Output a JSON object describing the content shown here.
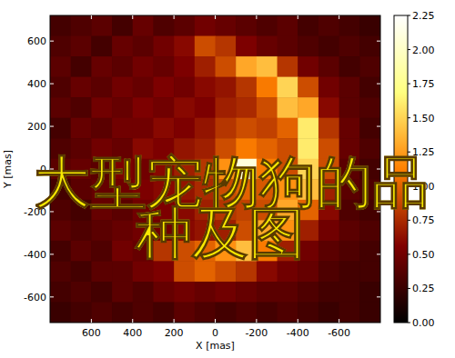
{
  "chart_data": {
    "type": "heatmap",
    "x_label": "X [mas]",
    "y_label": "Y [mas]",
    "annotations": [
      "大型宠物狗的品",
      "种及图"
    ],
    "xlim": [
      800,
      -800
    ],
    "ylim": [
      -720,
      720
    ],
    "xticks": [
      600,
      400,
      200,
      0,
      -200,
      -400,
      -600
    ],
    "yticks": [
      -600,
      -400,
      -200,
      0,
      200,
      400,
      600
    ],
    "x": [
      750,
      650,
      550,
      450,
      350,
      250,
      150,
      50,
      -50,
      -150,
      -250,
      -350,
      -450,
      -550,
      -650,
      -750
    ],
    "y": [
      672,
      576,
      480,
      384,
      288,
      192,
      96,
      0,
      -96,
      -192,
      -288,
      -384,
      -480,
      -576,
      -672
    ],
    "values": [
      [
        0.3,
        0.35,
        0.4,
        0.3,
        0.45,
        0.35,
        0.4,
        0.5,
        0.45,
        0.4,
        0.35,
        0.4,
        0.3,
        0.35,
        0.3,
        0.25
      ],
      [
        0.35,
        0.4,
        0.3,
        0.45,
        0.4,
        0.5,
        0.6,
        0.9,
        0.8,
        0.55,
        0.45,
        0.4,
        0.35,
        0.3,
        0.35,
        0.3
      ],
      [
        0.4,
        0.3,
        0.45,
        0.4,
        0.5,
        0.45,
        0.55,
        0.7,
        0.9,
        1.3,
        1.4,
        0.8,
        0.5,
        0.4,
        0.3,
        0.35
      ],
      [
        0.35,
        0.45,
        0.4,
        0.5,
        0.45,
        0.55,
        0.5,
        0.6,
        0.65,
        0.8,
        1.1,
        1.5,
        0.9,
        0.5,
        0.4,
        0.3
      ],
      [
        0.4,
        0.35,
        0.5,
        0.45,
        0.55,
        0.5,
        0.6,
        0.55,
        0.7,
        0.75,
        0.9,
        1.4,
        1.3,
        0.6,
        0.4,
        0.35
      ],
      [
        0.3,
        0.45,
        0.4,
        0.5,
        0.5,
        0.6,
        0.55,
        0.65,
        0.8,
        0.9,
        0.85,
        1.0,
        1.6,
        0.8,
        0.45,
        0.3
      ],
      [
        0.35,
        0.4,
        0.5,
        0.45,
        0.6,
        0.55,
        0.65,
        0.7,
        0.9,
        1.1,
        1.0,
        0.9,
        1.6,
        0.9,
        0.45,
        0.35
      ],
      [
        0.4,
        0.45,
        0.4,
        0.55,
        0.5,
        0.6,
        0.7,
        0.8,
        1.2,
        2.1,
        1.1,
        0.9,
        1.5,
        0.9,
        0.4,
        0.3
      ],
      [
        0.3,
        0.4,
        0.45,
        0.5,
        0.55,
        0.6,
        0.65,
        0.75,
        0.9,
        1.0,
        0.95,
        1.2,
        1.4,
        0.7,
        0.4,
        0.35
      ],
      [
        0.35,
        0.3,
        0.45,
        0.4,
        0.5,
        0.55,
        0.6,
        0.7,
        0.8,
        0.85,
        0.9,
        1.3,
        1.0,
        0.6,
        0.35,
        0.3
      ],
      [
        0.4,
        0.35,
        0.4,
        0.45,
        0.5,
        0.5,
        0.6,
        0.65,
        0.7,
        0.9,
        1.3,
        1.2,
        0.7,
        0.5,
        0.4,
        0.35
      ],
      [
        0.3,
        0.4,
        0.35,
        0.5,
        0.45,
        0.8,
        0.9,
        1.0,
        1.2,
        1.4,
        1.1,
        0.7,
        0.5,
        0.4,
        0.35,
        0.3
      ],
      [
        0.35,
        0.3,
        0.4,
        0.4,
        0.5,
        0.55,
        0.9,
        1.0,
        0.9,
        0.8,
        0.6,
        0.5,
        0.45,
        0.35,
        0.3,
        0.3
      ],
      [
        0.3,
        0.35,
        0.3,
        0.4,
        0.35,
        0.45,
        0.5,
        0.45,
        0.5,
        0.45,
        0.4,
        0.4,
        0.35,
        0.3,
        0.3,
        0.25
      ],
      [
        0.25,
        0.3,
        0.35,
        0.3,
        0.35,
        0.3,
        0.4,
        0.35,
        0.3,
        0.35,
        0.3,
        0.35,
        0.3,
        0.25,
        0.3,
        0.25
      ]
    ],
    "colorbar": {
      "lim": [
        0,
        2.25
      ],
      "ticks": [
        {
          "value": 0,
          "label": "0.00"
        },
        0.25,
        {
          "value": 0.5,
          "label": "0.50"
        },
        0.75,
        {
          "value": 1,
          "label": "1.00"
        },
        1.25,
        {
          "value": 1.5,
          "label": "1.50"
        },
        1.75,
        {
          "value": 2,
          "label": "2.00"
        },
        2.25
      ]
    }
  }
}
